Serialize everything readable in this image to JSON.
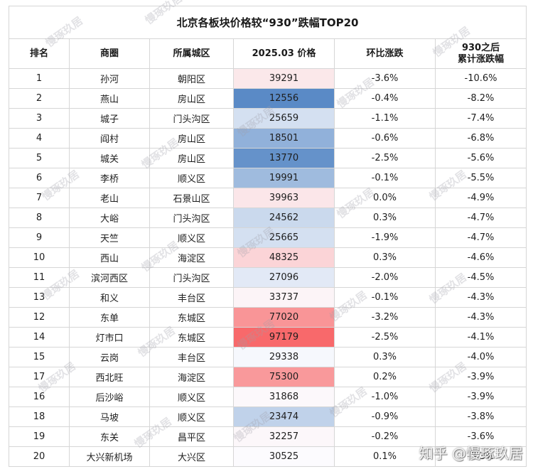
{
  "chart_data": {
    "type": "table",
    "title": "北京各板块价格较“930”跌幅TOP20",
    "columns": [
      "排名",
      "商圈",
      "所属城区",
      "2025.03 价格",
      "环比涨跌",
      "930之后\n累计涨跌幅"
    ],
    "rows": [
      {
        "rank": "1",
        "area": "孙河",
        "district": "朝阳区",
        "price": 39291,
        "mom": "-3.6%",
        "cum": "-10.6%"
      },
      {
        "rank": "2",
        "area": "燕山",
        "district": "房山区",
        "price": 12556,
        "mom": "-0.4%",
        "cum": "-8.2%"
      },
      {
        "rank": "3",
        "area": "城子",
        "district": "门头沟区",
        "price": 25659,
        "mom": "-1.1%",
        "cum": "-7.4%"
      },
      {
        "rank": "4",
        "area": "阎村",
        "district": "房山区",
        "price": 18501,
        "mom": "-0.6%",
        "cum": "-6.8%"
      },
      {
        "rank": "5",
        "area": "城关",
        "district": "房山区",
        "price": 13770,
        "mom": "-2.5%",
        "cum": "-5.6%"
      },
      {
        "rank": "6",
        "area": "李桥",
        "district": "顺义区",
        "price": 19991,
        "mom": "-0.1%",
        "cum": "-5.5%"
      },
      {
        "rank": "7",
        "area": "老山",
        "district": "石景山区",
        "price": 39963,
        "mom": "0.0%",
        "cum": "-4.9%"
      },
      {
        "rank": "8",
        "area": "大峪",
        "district": "门头沟区",
        "price": 24562,
        "mom": "0.3%",
        "cum": "-4.7%"
      },
      {
        "rank": "9",
        "area": "天竺",
        "district": "顺义区",
        "price": 25665,
        "mom": "-1.9%",
        "cum": "-4.7%"
      },
      {
        "rank": "10",
        "area": "西山",
        "district": "海淀区",
        "price": 48325,
        "mom": "0.3%",
        "cum": "-4.6%"
      },
      {
        "rank": "11",
        "area": "滨河西区",
        "district": "门头沟区",
        "price": 27096,
        "mom": "-2.0%",
        "cum": "-4.5%"
      },
      {
        "rank": "13",
        "area": "和义",
        "district": "丰台区",
        "price": 33737,
        "mom": "-0.1%",
        "cum": "-4.3%"
      },
      {
        "rank": "12",
        "area": "东单",
        "district": "东城区",
        "price": 77020,
        "mom": "-3.2%",
        "cum": "-4.3%"
      },
      {
        "rank": "14",
        "area": "灯市口",
        "district": "东城区",
        "price": 97179,
        "mom": "-2.5%",
        "cum": "-4.1%"
      },
      {
        "rank": "15",
        "area": "云岗",
        "district": "丰台区",
        "price": 29338,
        "mom": "0.3%",
        "cum": "-4.0%"
      },
      {
        "rank": "17",
        "area": "西北旺",
        "district": "海淀区",
        "price": 75300,
        "mom": "0.2%",
        "cum": "-3.9%"
      },
      {
        "rank": "16",
        "area": "后沙峪",
        "district": "顺义区",
        "price": 31868,
        "mom": "-1.0%",
        "cum": "-3.9%"
      },
      {
        "rank": "18",
        "area": "马坡",
        "district": "顺义区",
        "price": 23474,
        "mom": "-0.9%",
        "cum": "-3.8%"
      },
      {
        "rank": "19",
        "area": "东关",
        "district": "昌平区",
        "price": 32257,
        "mom": "-0.2%",
        "cum": "-3.6%"
      },
      {
        "rank": "20",
        "area": "大兴新机场",
        "district": "大兴区",
        "price": 30525,
        "mom": "0.1%",
        "cum": "-3.3%"
      }
    ],
    "heatmap": {
      "column": "2025.03 价格",
      "low_color": "#5A8AC6",
      "mid_color": "#FCFCFF",
      "high_color": "#F8696B"
    },
    "grid": true
  },
  "watermark": {
    "text": "慢琢玖居",
    "credit": "知乎 @慢琢玖居"
  }
}
